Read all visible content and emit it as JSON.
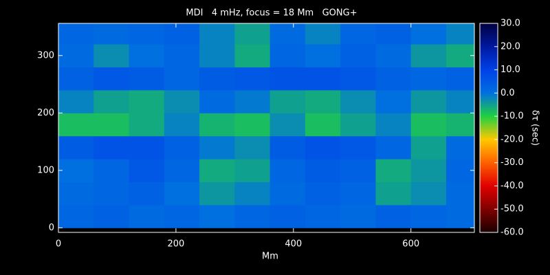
{
  "chart_data": {
    "type": "heatmap",
    "title": "MDI   4 mHz, focus = 18 Mm   GONG+",
    "x_label": "Mm",
    "colorbar_label": "δτ (sec)",
    "x": [
      30,
      90,
      150,
      210,
      270,
      330,
      390,
      450,
      510,
      570,
      630,
      690
    ],
    "y": [
      20,
      60,
      100,
      140,
      180,
      220,
      260,
      300,
      340
    ],
    "values": [
      [
        2,
        3,
        1,
        2,
        0,
        2,
        3,
        2,
        1,
        3,
        2,
        1
      ],
      [
        1,
        2,
        3,
        0,
        -4,
        -2,
        1,
        3,
        2,
        -5,
        -3,
        1
      ],
      [
        0,
        2,
        5,
        2,
        -6,
        -5,
        2,
        4,
        3,
        -6,
        -4,
        2
      ],
      [
        4,
        6,
        6,
        3,
        -1,
        -3,
        4,
        6,
        5,
        2,
        -5,
        1
      ],
      [
        -8,
        -8,
        -6,
        -2,
        -7,
        -8,
        -3,
        -8,
        -5,
        -2,
        -8,
        -7
      ],
      [
        -2,
        -5,
        -6,
        -3,
        1,
        -1,
        -5,
        -6,
        -3,
        0,
        -4,
        -2
      ],
      [
        3,
        5,
        4,
        2,
        4,
        5,
        6,
        6,
        5,
        3,
        2,
        3
      ],
      [
        1,
        -3,
        0,
        2,
        -2,
        -6,
        2,
        0,
        3,
        1,
        -4,
        -6
      ],
      [
        2,
        1,
        2,
        3,
        -2,
        -5,
        1,
        -2,
        2,
        3,
        0,
        -2
      ]
    ],
    "xlim": [
      0,
      708
    ],
    "ylim": [
      -8,
      356
    ],
    "xticks": [
      0,
      200,
      400,
      600
    ],
    "yticks": [
      0,
      100,
      200,
      300
    ],
    "clim": [
      -60,
      30
    ],
    "cticks": [
      {
        "value": 30,
        "label": "30.0"
      },
      {
        "value": 20,
        "label": "20.0"
      },
      {
        "value": 10,
        "label": "10.0"
      },
      {
        "value": 0,
        "label": "0.0"
      },
      {
        "value": -10,
        "label": "-10.0"
      },
      {
        "value": -20,
        "label": "-20.0"
      },
      {
        "value": -30,
        "label": "-30.0"
      },
      {
        "value": -40,
        "label": "-40.0"
      },
      {
        "value": -50,
        "label": "-50.0"
      },
      {
        "value": -60,
        "label": "-60.0"
      }
    ],
    "colormap": [
      "#1a0000",
      "#800000",
      "#e00000",
      "#ff6000",
      "#ffc800",
      "#20d040",
      "#0070e0",
      "#0040e8",
      "#0018a0",
      "#000040"
    ]
  }
}
